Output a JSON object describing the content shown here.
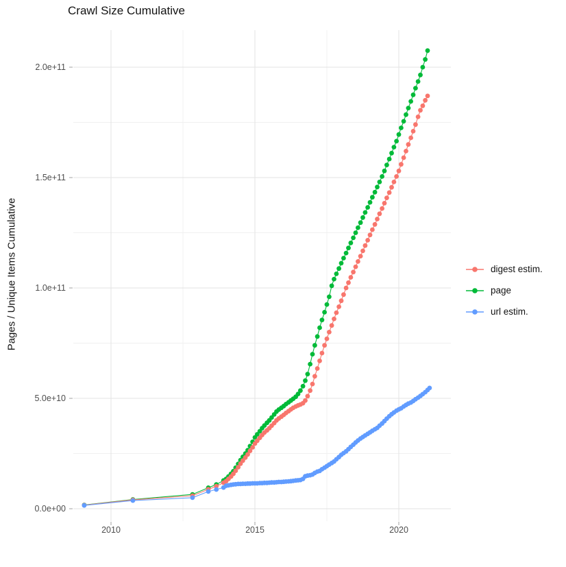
{
  "title": "Crawl Size Cumulative",
  "axes": {
    "y_label": "Pages / Unique Items Cumulative",
    "y_ticks": [
      {
        "label": "0.0e+00",
        "value": 0
      },
      {
        "label": "5.0e+10",
        "value": 50
      },
      {
        "label": "1.0e+11",
        "value": 100
      },
      {
        "label": "1.5e+11",
        "value": 150
      },
      {
        "label": "2.0e+11",
        "value": 200
      }
    ],
    "y_minor_values": [
      25,
      75,
      125,
      175
    ],
    "x_ticks": [
      {
        "label": "2010",
        "value": 2010
      },
      {
        "label": "2015",
        "value": 2015
      },
      {
        "label": "2020",
        "value": 2020
      }
    ],
    "x_minor_values": [
      2012.5,
      2017.5
    ]
  },
  "colors": {
    "digest": "#F8766D",
    "page": "#00BA38",
    "url": "#619CFF",
    "grid_major": "#e3e3e3",
    "grid_minor": "#f0f0f0",
    "tick_mark": "#b0b0b0",
    "axis_text": "#4d4d4d",
    "title_text": "#131313"
  },
  "chart_data": {
    "type": "scatter",
    "title": "Crawl Size Cumulative",
    "xlabel": "",
    "ylabel": "Pages / Unique Items Cumulative",
    "value_unit": "pages, value x 1e9 (billions)",
    "x_range": [
      2008.7,
      2021.8
    ],
    "y_range_billions": [
      0,
      210
    ],
    "grid": true,
    "legend_position": "right",
    "legend_order": [
      "digest estim.",
      "page",
      "url estim."
    ],
    "series": [
      {
        "name": "page",
        "color": "#00BA38",
        "points": [
          [
            2009.07,
            1.7
          ],
          [
            2010.76,
            4.2
          ],
          [
            2012.83,
            6.5
          ],
          [
            2013.38,
            9.5
          ],
          [
            2013.66,
            11.0
          ],
          [
            2013.91,
            12.8
          ],
          [
            2014.0,
            13.5
          ],
          [
            2014.08,
            14.6
          ],
          [
            2014.17,
            15.8
          ],
          [
            2014.25,
            17.0
          ],
          [
            2014.33,
            18.6
          ],
          [
            2014.42,
            20.3
          ],
          [
            2014.5,
            22.0
          ],
          [
            2014.58,
            23.5
          ],
          [
            2014.67,
            25.0
          ],
          [
            2014.75,
            26.5
          ],
          [
            2014.83,
            28.4
          ],
          [
            2014.92,
            30.3
          ],
          [
            2015.0,
            32.3
          ],
          [
            2015.08,
            33.7
          ],
          [
            2015.17,
            35.1
          ],
          [
            2015.25,
            36.5
          ],
          [
            2015.33,
            37.7
          ],
          [
            2015.42,
            38.9
          ],
          [
            2015.5,
            40.0
          ],
          [
            2015.58,
            41.3
          ],
          [
            2015.67,
            42.7
          ],
          [
            2015.75,
            44.0
          ],
          [
            2015.83,
            44.9
          ],
          [
            2015.92,
            45.7
          ],
          [
            2016.0,
            46.5
          ],
          [
            2016.08,
            47.4
          ],
          [
            2016.17,
            48.2
          ],
          [
            2016.25,
            49.0
          ],
          [
            2016.33,
            49.8
          ],
          [
            2016.42,
            50.7
          ],
          [
            2016.5,
            52.0
          ],
          [
            2016.58,
            53.5
          ],
          [
            2016.67,
            55.5
          ],
          [
            2016.75,
            58.0
          ],
          [
            2016.83,
            61.0
          ],
          [
            2016.92,
            65.5
          ],
          [
            2017.0,
            70.0
          ],
          [
            2017.08,
            74.0
          ],
          [
            2017.17,
            78.0
          ],
          [
            2017.25,
            82.0
          ],
          [
            2017.33,
            85.5
          ],
          [
            2017.42,
            89.0
          ],
          [
            2017.5,
            92.5
          ],
          [
            2017.58,
            96.0
          ],
          [
            2017.67,
            101.0
          ],
          [
            2017.75,
            104.0
          ],
          [
            2017.83,
            106.4
          ],
          [
            2017.92,
            108.8
          ],
          [
            2018.0,
            111.2
          ],
          [
            2018.08,
            113.5
          ],
          [
            2018.17,
            115.8
          ],
          [
            2018.25,
            118.1
          ],
          [
            2018.33,
            120.4
          ],
          [
            2018.42,
            122.7
          ],
          [
            2018.5,
            125.0
          ],
          [
            2018.58,
            127.3
          ],
          [
            2018.67,
            129.6
          ],
          [
            2018.75,
            131.9
          ],
          [
            2018.83,
            134.2
          ],
          [
            2018.92,
            136.5
          ],
          [
            2019.0,
            138.8
          ],
          [
            2019.08,
            141.1
          ],
          [
            2019.17,
            143.4
          ],
          [
            2019.25,
            145.7
          ],
          [
            2019.33,
            148.0
          ],
          [
            2019.42,
            150.5
          ],
          [
            2019.5,
            153.0
          ],
          [
            2019.58,
            155.7
          ],
          [
            2019.67,
            158.4
          ],
          [
            2019.75,
            161.1
          ],
          [
            2019.83,
            163.8
          ],
          [
            2019.92,
            166.5
          ],
          [
            2020.0,
            169.5
          ],
          [
            2020.08,
            172.5
          ],
          [
            2020.17,
            175.5
          ],
          [
            2020.25,
            178.5
          ],
          [
            2020.33,
            181.5
          ],
          [
            2020.42,
            184.5
          ],
          [
            2020.5,
            187.5
          ],
          [
            2020.58,
            190.5
          ],
          [
            2020.67,
            193.5
          ],
          [
            2020.75,
            196.5
          ],
          [
            2020.83,
            200.0
          ],
          [
            2020.92,
            203.5
          ],
          [
            2021.0,
            207.5
          ]
        ]
      },
      {
        "name": "digest estim.",
        "color": "#F8766D",
        "points": [
          [
            2009.07,
            1.6
          ],
          [
            2010.76,
            4.0
          ],
          [
            2012.83,
            5.9
          ],
          [
            2013.38,
            8.8
          ],
          [
            2013.66,
            10.2
          ],
          [
            2013.91,
            11.8
          ],
          [
            2014.0,
            12.5
          ],
          [
            2014.08,
            13.5
          ],
          [
            2014.17,
            14.6
          ],
          [
            2014.25,
            15.8
          ],
          [
            2014.33,
            17.2
          ],
          [
            2014.42,
            18.8
          ],
          [
            2014.5,
            20.4
          ],
          [
            2014.58,
            21.8
          ],
          [
            2014.67,
            23.2
          ],
          [
            2014.75,
            24.6
          ],
          [
            2014.83,
            26.2
          ],
          [
            2014.92,
            27.8
          ],
          [
            2015.0,
            29.5
          ],
          [
            2015.08,
            30.8
          ],
          [
            2015.17,
            32.1
          ],
          [
            2015.25,
            33.4
          ],
          [
            2015.33,
            34.5
          ],
          [
            2015.42,
            35.5
          ],
          [
            2015.5,
            36.5
          ],
          [
            2015.58,
            37.6
          ],
          [
            2015.67,
            38.8
          ],
          [
            2015.75,
            40.0
          ],
          [
            2015.83,
            40.9
          ],
          [
            2015.92,
            41.7
          ],
          [
            2016.0,
            42.5
          ],
          [
            2016.08,
            43.4
          ],
          [
            2016.17,
            44.2
          ],
          [
            2016.25,
            45.0
          ],
          [
            2016.33,
            45.7
          ],
          [
            2016.42,
            46.3
          ],
          [
            2016.5,
            46.8
          ],
          [
            2016.58,
            47.2
          ],
          [
            2016.67,
            47.8
          ],
          [
            2016.75,
            49.0
          ],
          [
            2016.83,
            51.0
          ],
          [
            2016.92,
            53.5
          ],
          [
            2017.0,
            56.5
          ],
          [
            2017.08,
            60.0
          ],
          [
            2017.17,
            63.5
          ],
          [
            2017.25,
            67.0
          ],
          [
            2017.33,
            70.5
          ],
          [
            2017.42,
            74.0
          ],
          [
            2017.5,
            77.0
          ],
          [
            2017.58,
            80.0
          ],
          [
            2017.67,
            83.0
          ],
          [
            2017.75,
            86.0
          ],
          [
            2017.83,
            88.8
          ],
          [
            2017.92,
            91.5
          ],
          [
            2018.0,
            94.2
          ],
          [
            2018.08,
            97.0
          ],
          [
            2018.17,
            100.0
          ],
          [
            2018.25,
            102.4
          ],
          [
            2018.33,
            104.8
          ],
          [
            2018.42,
            107.2
          ],
          [
            2018.5,
            109.6
          ],
          [
            2018.58,
            112.0
          ],
          [
            2018.67,
            114.4
          ],
          [
            2018.75,
            116.8
          ],
          [
            2018.83,
            119.2
          ],
          [
            2018.92,
            121.6
          ],
          [
            2019.0,
            124.0
          ],
          [
            2019.08,
            126.4
          ],
          [
            2019.17,
            128.8
          ],
          [
            2019.25,
            131.2
          ],
          [
            2019.33,
            133.6
          ],
          [
            2019.42,
            136.0
          ],
          [
            2019.5,
            138.4
          ],
          [
            2019.58,
            140.8
          ],
          [
            2019.67,
            143.2
          ],
          [
            2019.75,
            145.6
          ],
          [
            2019.83,
            148.0
          ],
          [
            2019.92,
            150.5
          ],
          [
            2020.0,
            153.0
          ],
          [
            2020.08,
            156.0
          ],
          [
            2020.17,
            159.0
          ],
          [
            2020.25,
            162.0
          ],
          [
            2020.33,
            165.0
          ],
          [
            2020.42,
            168.0
          ],
          [
            2020.5,
            171.0
          ],
          [
            2020.58,
            174.0
          ],
          [
            2020.67,
            177.5
          ],
          [
            2020.75,
            180.5
          ],
          [
            2020.83,
            182.5
          ],
          [
            2020.92,
            185.0
          ],
          [
            2021.0,
            187.0
          ]
        ]
      },
      {
        "name": "url estim.",
        "color": "#619CFF",
        "points": [
          [
            2009.07,
            1.5
          ],
          [
            2010.76,
            3.7
          ],
          [
            2012.83,
            5.0
          ],
          [
            2013.38,
            7.8
          ],
          [
            2013.66,
            8.7
          ],
          [
            2013.91,
            9.6
          ],
          [
            2014.0,
            10.4
          ],
          [
            2014.08,
            10.6
          ],
          [
            2014.17,
            10.8
          ],
          [
            2014.25,
            11.0
          ],
          [
            2014.33,
            11.1
          ],
          [
            2014.42,
            11.2
          ],
          [
            2014.5,
            11.2
          ],
          [
            2014.58,
            11.3
          ],
          [
            2014.67,
            11.3
          ],
          [
            2014.75,
            11.4
          ],
          [
            2014.83,
            11.4
          ],
          [
            2014.92,
            11.5
          ],
          [
            2015.0,
            11.5
          ],
          [
            2015.08,
            11.5
          ],
          [
            2015.17,
            11.6
          ],
          [
            2015.25,
            11.6
          ],
          [
            2015.33,
            11.7
          ],
          [
            2015.42,
            11.7
          ],
          [
            2015.5,
            11.8
          ],
          [
            2015.58,
            11.9
          ],
          [
            2015.67,
            11.9
          ],
          [
            2015.75,
            12.0
          ],
          [
            2015.83,
            12.1
          ],
          [
            2015.92,
            12.1
          ],
          [
            2016.0,
            12.2
          ],
          [
            2016.08,
            12.3
          ],
          [
            2016.17,
            12.4
          ],
          [
            2016.25,
            12.5
          ],
          [
            2016.33,
            12.6
          ],
          [
            2016.42,
            12.8
          ],
          [
            2016.5,
            12.9
          ],
          [
            2016.58,
            13.0
          ],
          [
            2016.67,
            13.5
          ],
          [
            2016.75,
            14.7
          ],
          [
            2016.83,
            15.0
          ],
          [
            2016.92,
            15.2
          ],
          [
            2017.0,
            15.5
          ],
          [
            2017.08,
            16.2
          ],
          [
            2017.17,
            16.8
          ],
          [
            2017.25,
            17.1
          ],
          [
            2017.33,
            17.9
          ],
          [
            2017.42,
            18.6
          ],
          [
            2017.5,
            19.3
          ],
          [
            2017.58,
            20.0
          ],
          [
            2017.67,
            20.7
          ],
          [
            2017.75,
            21.4
          ],
          [
            2017.83,
            22.4
          ],
          [
            2017.92,
            23.4
          ],
          [
            2018.0,
            24.4
          ],
          [
            2018.08,
            25.2
          ],
          [
            2018.17,
            26.0
          ],
          [
            2018.25,
            27.0
          ],
          [
            2018.33,
            28.0
          ],
          [
            2018.42,
            29.0
          ],
          [
            2018.5,
            30.0
          ],
          [
            2018.58,
            30.9
          ],
          [
            2018.67,
            31.8
          ],
          [
            2018.75,
            32.5
          ],
          [
            2018.83,
            33.2
          ],
          [
            2018.92,
            33.9
          ],
          [
            2019.0,
            34.6
          ],
          [
            2019.08,
            35.3
          ],
          [
            2019.17,
            36.0
          ],
          [
            2019.25,
            36.6
          ],
          [
            2019.33,
            37.6
          ],
          [
            2019.42,
            38.6
          ],
          [
            2019.5,
            39.7
          ],
          [
            2019.58,
            40.8
          ],
          [
            2019.67,
            41.9
          ],
          [
            2019.75,
            42.8
          ],
          [
            2019.83,
            43.6
          ],
          [
            2019.92,
            44.4
          ],
          [
            2020.0,
            45.0
          ],
          [
            2020.08,
            45.5
          ],
          [
            2020.17,
            46.3
          ],
          [
            2020.25,
            47.0
          ],
          [
            2020.33,
            47.6
          ],
          [
            2020.42,
            48.1
          ],
          [
            2020.5,
            48.8
          ],
          [
            2020.58,
            49.6
          ],
          [
            2020.67,
            50.3
          ],
          [
            2020.75,
            51.1
          ],
          [
            2020.83,
            51.9
          ],
          [
            2020.92,
            52.8
          ],
          [
            2021.0,
            53.8
          ],
          [
            2021.07,
            54.7
          ]
        ]
      }
    ]
  },
  "legend": {
    "items": [
      {
        "label": "digest estim.",
        "color": "#F8766D"
      },
      {
        "label": "page",
        "color": "#00BA38"
      },
      {
        "label": "url estim.",
        "color": "#619CFF"
      }
    ]
  }
}
